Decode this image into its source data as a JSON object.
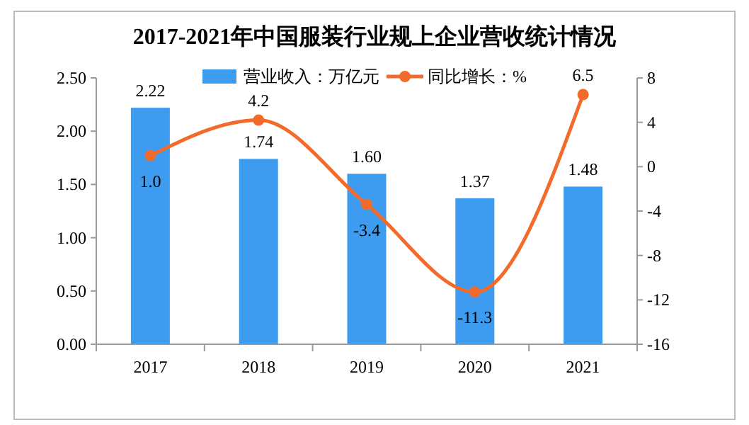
{
  "chart_data": {
    "type": "bar",
    "title": "2017-2021年中国服装行业规上企业营收统计情况",
    "categories": [
      "2017",
      "2018",
      "2019",
      "2020",
      "2021"
    ],
    "series": [
      {
        "name": "营业收入：万亿元",
        "color": "#3d9cf0",
        "values": [
          2.22,
          1.74,
          1.6,
          1.37,
          1.48
        ],
        "value_labels": [
          "2.22",
          "1.74",
          "1.60",
          "1.37",
          "1.48"
        ]
      },
      {
        "name": "同比增长：%",
        "type": "line",
        "axis": "y2",
        "color": "#f26b2a",
        "marker": "circle",
        "values": [
          1.0,
          4.2,
          -3.4,
          -11.3,
          6.5
        ],
        "value_labels": [
          "1.0",
          "4.2",
          "-3.4",
          "-11.3",
          "6.5"
        ]
      }
    ],
    "ylim": [
      0,
      2.5
    ],
    "yticks": [
      {
        "value": 0,
        "label": "0.00"
      },
      {
        "value": 0.5,
        "label": "0.50"
      },
      {
        "value": 1,
        "label": "1.00"
      },
      {
        "value": 1.5,
        "label": "1.50"
      },
      {
        "value": 2,
        "label": "2.00"
      },
      {
        "value": 2.5,
        "label": "2.50"
      }
    ],
    "y2lim": [
      -16,
      8
    ],
    "y2ticks": [
      -16,
      -12,
      -8,
      -4,
      0,
      4,
      8
    ],
    "legend": "top",
    "grid": false
  }
}
